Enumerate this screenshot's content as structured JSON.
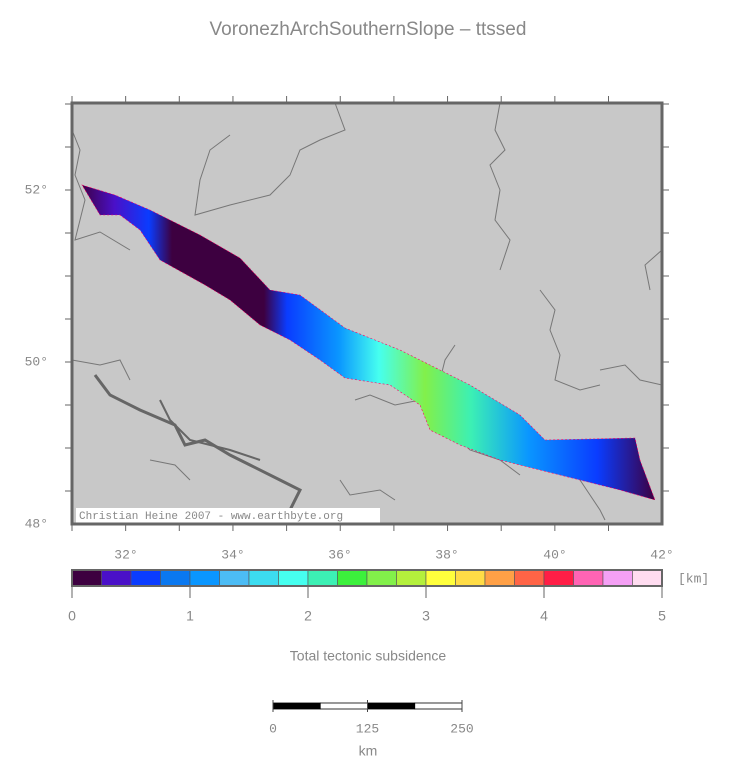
{
  "title": "VoronezhArchSouthernSlope – ttssed",
  "map": {
    "lon_labels": [
      "32°",
      "34°",
      "36°",
      "38°",
      "40°",
      "42°"
    ],
    "lat_labels": [
      "52°",
      "50°",
      "48°"
    ],
    "credit": "Christian Heine 2007 - www.earthbyte.org"
  },
  "colorbar": {
    "ticks": [
      0,
      1,
      2,
      3,
      4,
      5
    ],
    "unit": "[km]",
    "label": "Total tectonic subsidence",
    "colors": [
      "#3d0040",
      "#4a10c8",
      "#0a3cff",
      "#0a78f0",
      "#0a96ff",
      "#4cbcf5",
      "#3cdcf0",
      "#46ffef",
      "#3cf0b4",
      "#3cf03c",
      "#82f04a",
      "#b4f03c",
      "#ffff3c",
      "#ffdc46",
      "#ffa046",
      "#ff6446",
      "#ff1e46",
      "#ff64b4",
      "#f5a0f5",
      "#ffdcf0"
    ]
  },
  "scalebar": {
    "ticks": [
      0,
      125,
      250
    ],
    "unit": "km"
  }
}
